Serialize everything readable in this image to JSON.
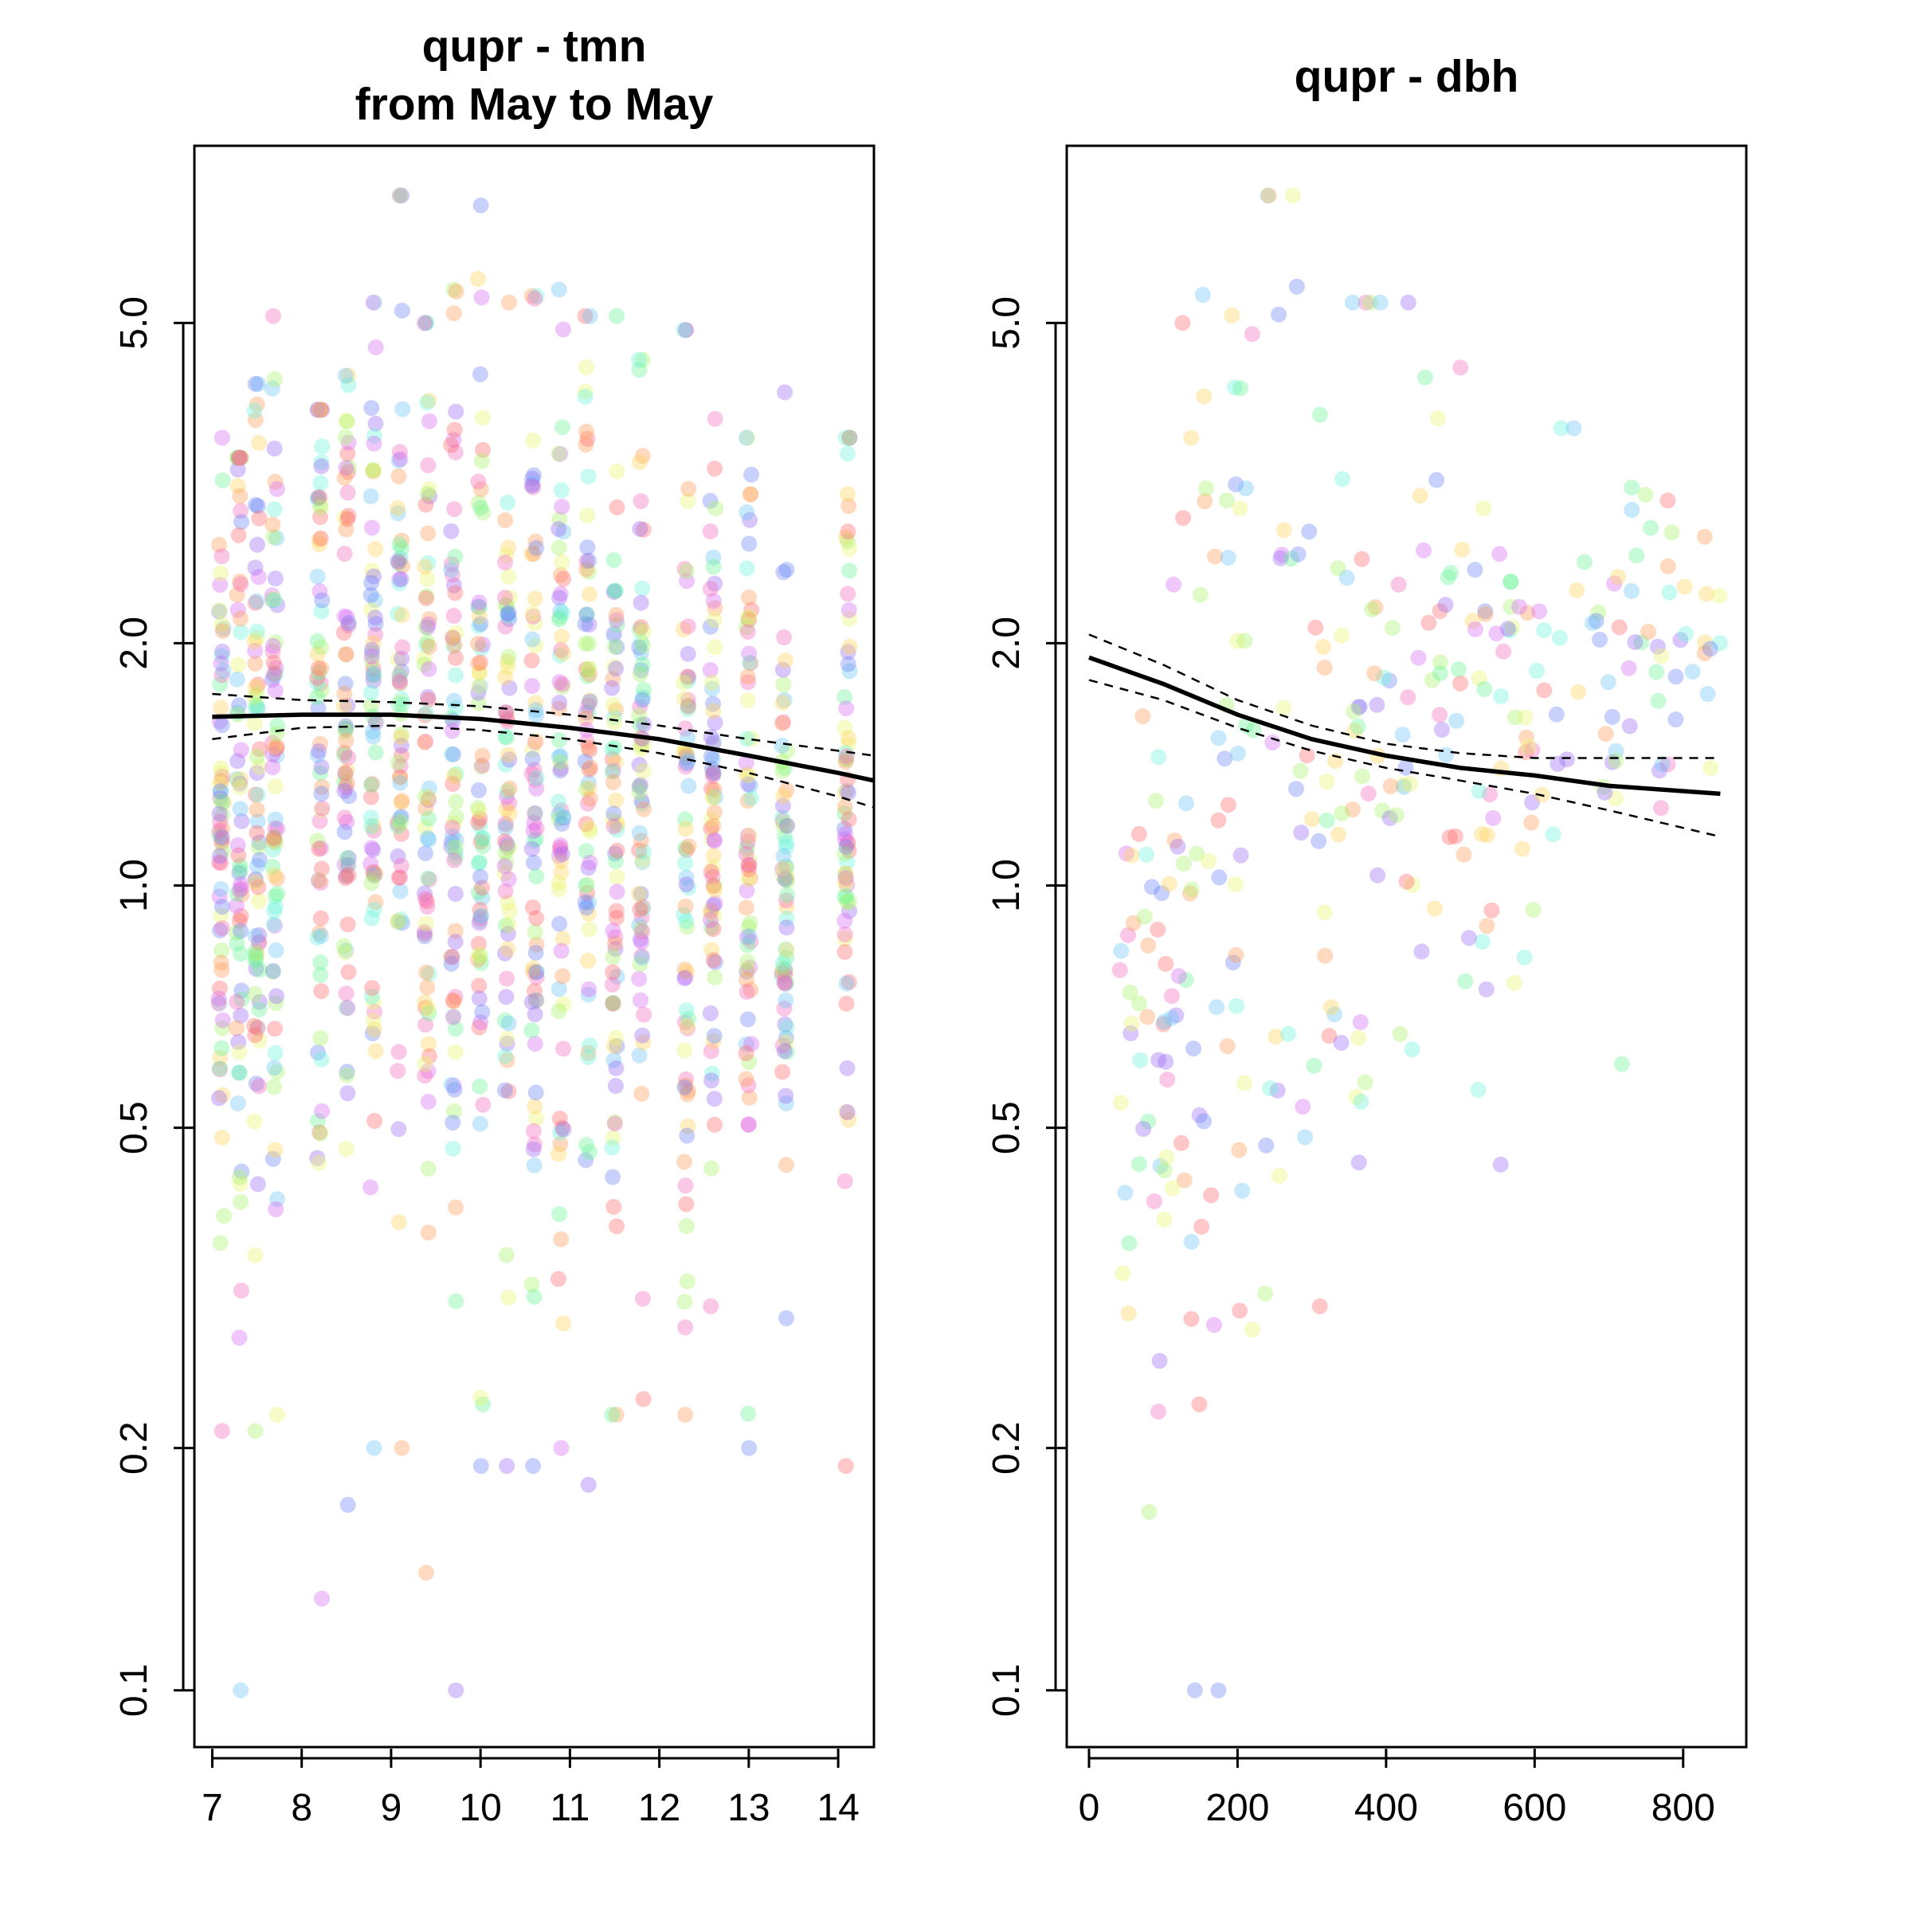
{
  "chart_data": [
    {
      "type": "scatter",
      "title_lines": [
        "qupr - tmn",
        "from May to May"
      ],
      "xlabel": "",
      "ylabel": "",
      "y_scale": "log",
      "xlim": [
        6.8,
        14.4
      ],
      "ylim": [
        0.085,
        8.3
      ],
      "x_ticks": [
        "7",
        "8",
        "9",
        "10",
        "11",
        "12",
        "13",
        "14"
      ],
      "x_tick_values": [
        7,
        8,
        9,
        10,
        11,
        12,
        13,
        14
      ],
      "y_ticks": [
        "0.1",
        "0.2",
        "0.5",
        "1.0",
        "2.0",
        "5.0"
      ],
      "y_tick_values": [
        0.1,
        0.2,
        0.5,
        1.0,
        2.0,
        5.0
      ],
      "grid": false,
      "points_style": "semi-transparent rainbow-coloured points, several thousand observations",
      "point_clusters": [
        {
          "x": 7.1,
          "y_median": 1.25,
          "y_range": [
            0.21,
            3.6
          ]
        },
        {
          "x": 7.3,
          "y_median": 1.3,
          "y_range": [
            0.1,
            3.4
          ]
        },
        {
          "x": 7.5,
          "y_median": 1.3,
          "y_range": [
            0.21,
            4.2
          ]
        },
        {
          "x": 7.7,
          "y_median": 1.35,
          "y_range": [
            0.22,
            5.1
          ]
        },
        {
          "x": 8.2,
          "y_median": 1.4,
          "y_range": [
            0.13,
            3.9
          ]
        },
        {
          "x": 8.5,
          "y_median": 1.45,
          "y_range": [
            0.17,
            4.3
          ]
        },
        {
          "x": 8.8,
          "y_median": 1.5,
          "y_range": [
            0.2,
            5.3
          ]
        },
        {
          "x": 9.1,
          "y_median": 1.5,
          "y_range": [
            0.2,
            7.2
          ]
        },
        {
          "x": 9.4,
          "y_median": 1.45,
          "y_range": [
            0.14,
            5.0
          ]
        },
        {
          "x": 9.7,
          "y_median": 1.4,
          "y_range": [
            0.1,
            5.5
          ]
        },
        {
          "x": 10.0,
          "y_median": 1.4,
          "y_range": [
            0.19,
            7.0
          ]
        },
        {
          "x": 10.3,
          "y_median": 1.35,
          "y_range": [
            0.19,
            5.3
          ]
        },
        {
          "x": 10.6,
          "y_median": 1.35,
          "y_range": [
            0.19,
            5.4
          ]
        },
        {
          "x": 10.9,
          "y_median": 1.3,
          "y_range": [
            0.2,
            5.5
          ]
        },
        {
          "x": 11.2,
          "y_median": 1.3,
          "y_range": [
            0.18,
            5.1
          ]
        },
        {
          "x": 11.5,
          "y_median": 1.25,
          "y_range": [
            0.22,
            5.1
          ]
        },
        {
          "x": 11.8,
          "y_median": 1.25,
          "y_range": [
            0.23,
            4.5
          ]
        },
        {
          "x": 12.3,
          "y_median": 1.2,
          "y_range": [
            0.22,
            4.9
          ]
        },
        {
          "x": 12.6,
          "y_median": 1.2,
          "y_range": [
            0.3,
            3.8
          ]
        },
        {
          "x": 13.0,
          "y_median": 1.15,
          "y_range": [
            0.2,
            3.6
          ]
        },
        {
          "x": 13.4,
          "y_median": 1.1,
          "y_range": [
            0.29,
            4.1
          ]
        },
        {
          "x": 14.1,
          "y_median": 1.1,
          "y_range": [
            0.19,
            3.6
          ]
        }
      ],
      "series": [
        {
          "role": "fit",
          "x": [
            7.0,
            8.0,
            9.0,
            10.0,
            11.0,
            12.0,
            13.0,
            14.0,
            14.4
          ],
          "y": [
            1.62,
            1.63,
            1.63,
            1.61,
            1.57,
            1.52,
            1.45,
            1.38,
            1.35
          ]
        },
        {
          "role": "ci_upper",
          "x": [
            7.0,
            8.0,
            9.0,
            10.0,
            11.0,
            12.0,
            13.0,
            14.0,
            14.4
          ],
          "y": [
            1.73,
            1.7,
            1.69,
            1.67,
            1.63,
            1.58,
            1.52,
            1.47,
            1.45
          ]
        },
        {
          "role": "ci_lower",
          "x": [
            7.0,
            8.0,
            9.0,
            10.0,
            11.0,
            12.0,
            13.0,
            14.0,
            14.4
          ],
          "y": [
            1.52,
            1.57,
            1.58,
            1.56,
            1.52,
            1.46,
            1.38,
            1.29,
            1.25
          ]
        }
      ]
    },
    {
      "type": "scatter",
      "title_lines": [
        "qupr - dbh"
      ],
      "xlabel": "",
      "ylabel": "",
      "y_scale": "log",
      "xlim": [
        -30,
        885
      ],
      "ylim": [
        0.085,
        8.3
      ],
      "x_ticks": [
        "0",
        "200",
        "400",
        "600",
        "800"
      ],
      "x_tick_values": [
        0,
        200,
        400,
        600,
        800
      ],
      "y_ticks": [
        "0.1",
        "0.2",
        "0.5",
        "1.0",
        "2.0",
        "5.0"
      ],
      "y_tick_values": [
        0.1,
        0.2,
        0.5,
        1.0,
        2.0,
        5.0
      ],
      "grid": false,
      "points_style": "semi-transparent rainbow-coloured points, several thousand observations",
      "point_clusters": [
        {
          "x_range": [
            40,
            150
          ],
          "y_median": 0.75,
          "y_range": [
            0.1,
            5.0
          ]
        },
        {
          "x_range": [
            150,
            300
          ],
          "y_median": 1.3,
          "y_range": [
            0.1,
            7.2
          ]
        },
        {
          "x_range": [
            300,
            450
          ],
          "y_median": 1.5,
          "y_range": [
            0.3,
            5.3
          ]
        },
        {
          "x_range": [
            450,
            600
          ],
          "y_median": 1.6,
          "y_range": [
            0.45,
            4.4
          ]
        },
        {
          "x_range": [
            600,
            850
          ],
          "y_median": 1.9,
          "y_range": [
            0.6,
            3.7
          ]
        }
      ],
      "series": [
        {
          "role": "fit",
          "x": [
            0,
            100,
            200,
            300,
            400,
            500,
            600,
            700,
            850
          ],
          "y": [
            1.92,
            1.78,
            1.63,
            1.52,
            1.45,
            1.4,
            1.37,
            1.33,
            1.3
          ]
        },
        {
          "role": "ci_upper",
          "x": [
            0,
            100,
            200,
            300,
            400,
            500,
            600,
            700,
            850
          ],
          "y": [
            2.05,
            1.88,
            1.7,
            1.58,
            1.5,
            1.46,
            1.44,
            1.44,
            1.44
          ]
        },
        {
          "role": "ci_lower",
          "x": [
            0,
            100,
            200,
            300,
            400,
            500,
            600,
            700,
            850
          ],
          "y": [
            1.8,
            1.7,
            1.57,
            1.47,
            1.4,
            1.35,
            1.3,
            1.24,
            1.15
          ]
        }
      ]
    }
  ]
}
